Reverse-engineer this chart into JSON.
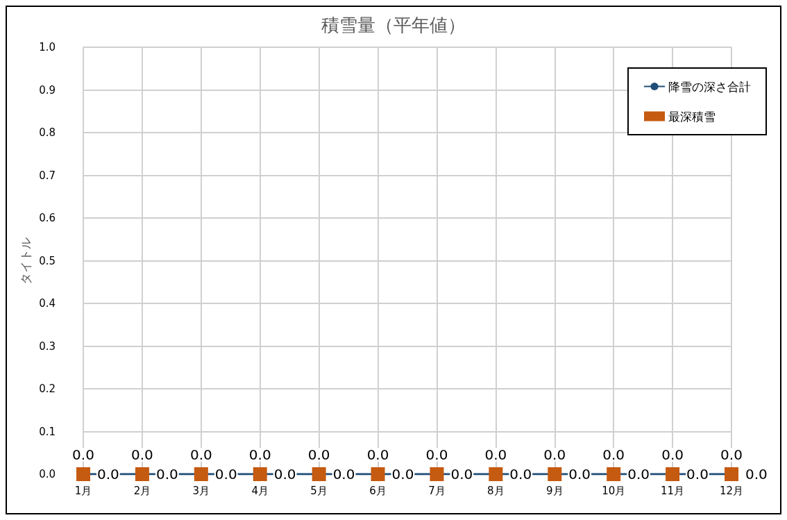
{
  "chart_data": {
    "type": "line",
    "title": "積雪量（平年値）",
    "ylabel": "タイトル",
    "categories": [
      "1月",
      "2月",
      "3月",
      "4月",
      "5月",
      "6月",
      "7月",
      "8月",
      "9月",
      "10月",
      "11月",
      "12月"
    ],
    "series": [
      {
        "name": "降雪の深さ合計",
        "color": "#1f4e79",
        "marker": "circle",
        "values": [
          0,
          0,
          0,
          0,
          0,
          0,
          0,
          0,
          0,
          0,
          0,
          0
        ],
        "value_labels": [
          "0.0",
          "0.0",
          "0.0",
          "0.0",
          "0.0",
          "0.0",
          "0.0",
          "0.0",
          "0.0",
          "0.0",
          "0.0",
          "0.0"
        ]
      },
      {
        "name": "最深積雪",
        "type": "scatter",
        "color": "#c55a11",
        "marker": "square",
        "values": [
          0,
          0,
          0,
          0,
          0,
          0,
          0,
          0,
          0,
          0,
          0,
          0
        ],
        "value_labels": [
          "0.0",
          "0.0",
          "0.0",
          "0.0",
          "0.0",
          "0.0",
          "0.0",
          "0.0",
          "0.0",
          "0.0",
          "0.0",
          "0.0"
        ]
      }
    ],
    "ylim": [
      0,
      1
    ],
    "yticks": [
      {
        "value": 0,
        "label": "0.0"
      },
      {
        "value": 0.1,
        "label": "0.1"
      },
      {
        "value": 0.2,
        "label": "0.2"
      },
      {
        "value": 0.3,
        "label": "0.3"
      },
      {
        "value": 0.4,
        "label": "0.4"
      },
      {
        "value": 0.5,
        "label": "0.5"
      },
      {
        "value": 0.6,
        "label": "0.6"
      },
      {
        "value": 0.7,
        "label": "0.7"
      },
      {
        "value": 0.8,
        "label": "0.8"
      },
      {
        "value": 0.9,
        "label": "0.9"
      },
      {
        "value": 1,
        "label": "1.0"
      }
    ],
    "grid": true,
    "legend": "top right"
  }
}
